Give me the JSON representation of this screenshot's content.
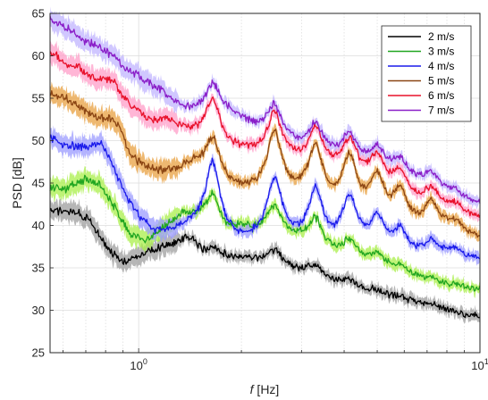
{
  "chart_data": {
    "type": "line",
    "title": "",
    "xlabel": {
      "italic": "f",
      "rest": " [Hz]"
    },
    "ylabel": "PSD [dB]",
    "xscale": "log",
    "xlim": [
      0.55,
      10
    ],
    "ylim": [
      25,
      65
    ],
    "yticks": [
      25,
      30,
      35,
      40,
      45,
      50,
      55,
      60,
      65
    ],
    "xticks": [
      {
        "value": 1,
        "base": "10",
        "exp": "0"
      },
      {
        "value": 10,
        "base": "10",
        "exp": "1"
      }
    ],
    "grid": true,
    "legend_position": "top-right",
    "peaks": [
      1.65,
      2.5,
      3.3,
      4.15,
      5.0,
      5.85,
      7.2,
      8.5
    ],
    "series": [
      {
        "name": "2 m/s",
        "color": "#000000",
        "band": "#9e9e9e",
        "base": [
          [
            0.55,
            41.8
          ],
          [
            0.65,
            41.6
          ],
          [
            0.72,
            40.6
          ],
          [
            0.8,
            37.5
          ],
          [
            0.9,
            35.6
          ],
          [
            1.0,
            36.4
          ],
          [
            1.1,
            37.0
          ],
          [
            1.25,
            37.8
          ],
          [
            1.4,
            38.7
          ],
          [
            1.55,
            36.8
          ],
          [
            1.8,
            36.3
          ],
          [
            2.2,
            35.8
          ],
          [
            2.5,
            35.3
          ],
          [
            3.0,
            34.5
          ],
          [
            3.5,
            33.5
          ],
          [
            4.0,
            32.8
          ],
          [
            5.0,
            31.8
          ],
          [
            6.0,
            31.0
          ],
          [
            7.0,
            30.5
          ],
          [
            8.0,
            29.9
          ],
          [
            9.0,
            29.4
          ],
          [
            10.0,
            29.3
          ]
        ],
        "amps": [
          0.8,
          1.7,
          1.4,
          0.8,
          0.5,
          0.4,
          0.3,
          0.2
        ]
      },
      {
        "name": "3 m/s",
        "color": "#21a621",
        "band": "#aaef4a",
        "base": [
          [
            0.55,
            44.3
          ],
          [
            0.62,
            44.4
          ],
          [
            0.7,
            45.5
          ],
          [
            0.77,
            44.7
          ],
          [
            0.85,
            42.2
          ],
          [
            0.95,
            38.8
          ],
          [
            1.05,
            38.2
          ],
          [
            1.2,
            40.0
          ],
          [
            1.35,
            41.2
          ],
          [
            1.5,
            40.7
          ],
          [
            1.8,
            39.0
          ],
          [
            2.0,
            39.6
          ],
          [
            2.5,
            38.8
          ],
          [
            3.0,
            38.0
          ],
          [
            3.5,
            36.8
          ],
          [
            4.0,
            36.0
          ],
          [
            5.0,
            35.0
          ],
          [
            6.0,
            34.0
          ],
          [
            7.0,
            33.4
          ],
          [
            8.0,
            32.8
          ],
          [
            9.0,
            32.5
          ],
          [
            10.0,
            32.5
          ]
        ],
        "amps": [
          3.8,
          3.3,
          3.3,
          2.2,
          1.4,
          0.9,
          0.5,
          0.3
        ]
      },
      {
        "name": "4 m/s",
        "color": "#1a1aeb",
        "band": "#9b9bff",
        "base": [
          [
            0.55,
            50.2
          ],
          [
            0.62,
            49.3
          ],
          [
            0.7,
            49.2
          ],
          [
            0.78,
            49.5
          ],
          [
            0.83,
            47.5
          ],
          [
            0.9,
            44.0
          ],
          [
            1.0,
            41.0
          ],
          [
            1.1,
            39.2
          ],
          [
            1.25,
            39.2
          ],
          [
            1.45,
            39.8
          ],
          [
            1.8,
            38.2
          ],
          [
            2.0,
            38.0
          ],
          [
            2.5,
            38.2
          ],
          [
            3.0,
            37.8
          ],
          [
            3.5,
            37.3
          ],
          [
            4.0,
            37.2
          ],
          [
            5.0,
            36.8
          ],
          [
            6.0,
            36.2
          ],
          [
            7.0,
            35.8
          ],
          [
            8.0,
            36.1
          ],
          [
            9.0,
            35.8
          ],
          [
            10.0,
            35.8
          ]
        ],
        "amps": [
          8.5,
          7.0,
          6.2,
          5.6,
          3.6,
          2.7,
          2.0,
          1.0
        ]
      },
      {
        "name": "5 m/s",
        "color": "#8b4513",
        "band": "#e8a040",
        "base": [
          [
            0.55,
            55.6
          ],
          [
            0.62,
            54.8
          ],
          [
            0.7,
            53.5
          ],
          [
            0.76,
            52.5
          ],
          [
            0.82,
            52.6
          ],
          [
            0.88,
            51.5
          ],
          [
            0.95,
            48.0
          ],
          [
            1.05,
            46.8
          ],
          [
            1.15,
            46.3
          ],
          [
            1.3,
            46.5
          ],
          [
            1.45,
            47.0
          ],
          [
            1.8,
            44.5
          ],
          [
            2.0,
            44.0
          ],
          [
            2.5,
            43.5
          ],
          [
            3.0,
            43.0
          ],
          [
            3.5,
            42.0
          ],
          [
            4.0,
            41.5
          ],
          [
            5.0,
            40.5
          ],
          [
            6.0,
            39.5
          ],
          [
            7.0,
            39.3
          ],
          [
            8.0,
            39.0
          ],
          [
            9.0,
            38.5
          ],
          [
            10.0,
            38.5
          ]
        ],
        "amps": [
          4.7,
          7.3,
          6.3,
          6.1,
          4.5,
          3.9,
          3.0,
          1.5
        ]
      },
      {
        "name": "6 m/s",
        "color": "#e8102a",
        "band": "#ff9ec8",
        "base": [
          [
            0.55,
            60.6
          ],
          [
            0.62,
            58.8
          ],
          [
            0.68,
            58.5
          ],
          [
            0.74,
            57.2
          ],
          [
            0.8,
            57.2
          ],
          [
            0.85,
            56.8
          ],
          [
            0.9,
            55.0
          ],
          [
            1.0,
            53.3
          ],
          [
            1.1,
            52.2
          ],
          [
            1.2,
            52.5
          ],
          [
            1.35,
            51.2
          ],
          [
            1.5,
            50.5
          ],
          [
            1.8,
            49.0
          ],
          [
            2.1,
            48.5
          ],
          [
            2.5,
            48.0
          ],
          [
            3.0,
            47.0
          ],
          [
            3.5,
            46.3
          ],
          [
            4.0,
            45.8
          ],
          [
            5.0,
            44.5
          ],
          [
            6.0,
            43.0
          ],
          [
            7.0,
            42.0
          ],
          [
            8.0,
            41.5
          ],
          [
            9.0,
            41.0
          ],
          [
            10.0,
            40.8
          ]
        ],
        "amps": [
          5.0,
          5.0,
          4.6,
          4.0,
          3.2,
          2.7,
          2.2,
          1.1
        ]
      },
      {
        "name": "7 m/s",
        "color": "#8a1ec8",
        "band": "#c0b4ff",
        "base": [
          [
            0.55,
            64.2
          ],
          [
            0.62,
            63.3
          ],
          [
            0.68,
            62.0
          ],
          [
            0.75,
            61.2
          ],
          [
            0.8,
            60.4
          ],
          [
            0.85,
            60.0
          ],
          [
            0.9,
            58.6
          ],
          [
            1.0,
            57.5
          ],
          [
            1.1,
            56.5
          ],
          [
            1.2,
            55.5
          ],
          [
            1.3,
            54.2
          ],
          [
            1.45,
            53.4
          ],
          [
            1.8,
            53.2
          ],
          [
            2.1,
            51.8
          ],
          [
            2.5,
            50.0
          ],
          [
            3.0,
            49.0
          ],
          [
            3.5,
            48.2
          ],
          [
            4.0,
            47.5
          ],
          [
            5.0,
            46.3
          ],
          [
            6.0,
            45.2
          ],
          [
            7.0,
            44.5
          ],
          [
            8.0,
            43.6
          ],
          [
            9.0,
            42.8
          ],
          [
            10.0,
            42.5
          ]
        ],
        "amps": [
          3.3,
          4.0,
          3.2,
          3.2,
          2.5,
          2.2,
          1.7,
          0.9
        ]
      }
    ]
  }
}
